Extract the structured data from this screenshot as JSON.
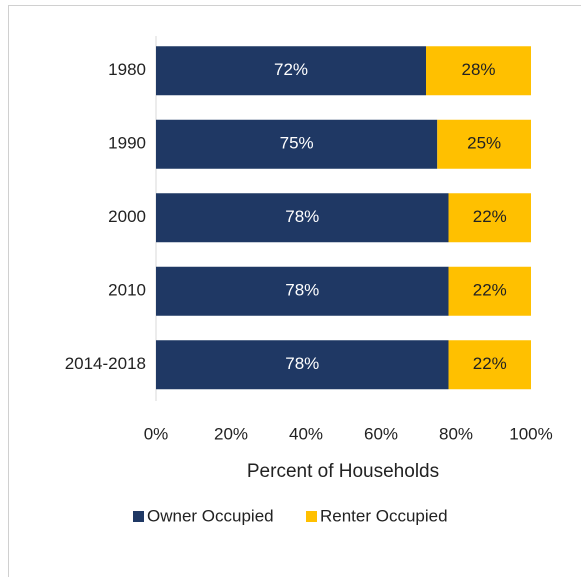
{
  "chart_data": {
    "type": "stacked_barh",
    "categories": [
      "1980",
      "1990",
      "2000",
      "2010",
      "2014-2018"
    ],
    "series": [
      {
        "name": "Owner Occupied",
        "color": "#1f3864",
        "values": [
          72,
          75,
          78,
          78,
          78
        ],
        "value_labels": [
          "72%",
          "75%",
          "78%",
          "78%",
          "78%"
        ]
      },
      {
        "name": "Renter Occupied",
        "color": "#ffc000",
        "values": [
          28,
          25,
          22,
          22,
          22
        ],
        "value_labels": [
          "28%",
          "25%",
          "22%",
          "22%",
          "22%"
        ]
      }
    ],
    "xlabel": "Percent of Households",
    "xlim": [
      0,
      100
    ],
    "xticks": [
      {
        "value": 0,
        "label": "0%"
      },
      {
        "value": 20,
        "label": "20%"
      },
      {
        "value": 40,
        "label": "40%"
      },
      {
        "value": 60,
        "label": "60%"
      },
      {
        "value": 80,
        "label": "80%"
      },
      {
        "value": 100,
        "label": "100%"
      }
    ],
    "legend": "bottom"
  }
}
